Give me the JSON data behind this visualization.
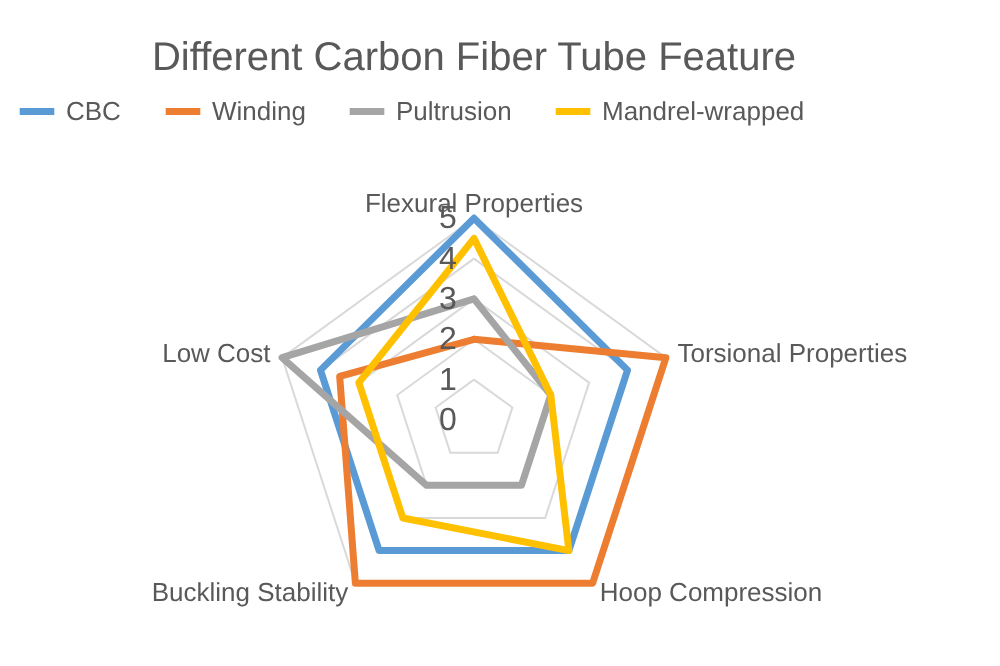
{
  "chart_data": {
    "type": "radar",
    "title": "Different Carbon Fiber Tube Feature",
    "categories": [
      "Flexural Properties",
      "Torsional Properties",
      "Hoop Compression",
      "Buckling Stability",
      "Low Cost"
    ],
    "series": [
      {
        "name": "CBC",
        "color": "#5b9bd5",
        "values": [
          5,
          4,
          4,
          4,
          4
        ]
      },
      {
        "name": "Winding",
        "color": "#ed7d31",
        "values": [
          2,
          5,
          5,
          5,
          3.5
        ]
      },
      {
        "name": "Pultrusion",
        "color": "#a5a5a5",
        "values": [
          3,
          2,
          2,
          2,
          5
        ]
      },
      {
        "name": "Mandrel-wrapped",
        "color": "#ffc000",
        "values": [
          4.5,
          2,
          4,
          3,
          3
        ]
      }
    ],
    "ylim": [
      0,
      5
    ],
    "yticks": [
      0,
      1,
      2,
      3,
      4,
      5
    ],
    "grid": true,
    "legend": "top"
  }
}
